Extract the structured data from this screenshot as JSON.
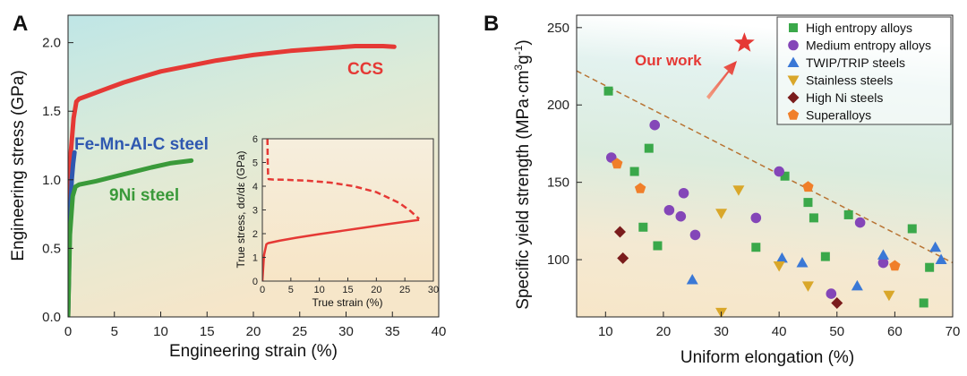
{
  "chart_data": [
    {
      "panel": "A",
      "type": "line",
      "xlabel": "Engineering strain (%)",
      "ylabel": "Engineering stress (GPa)",
      "xlim": [
        0,
        40
      ],
      "ylim": [
        0,
        2.2
      ],
      "xticks": [
        0,
        5,
        10,
        15,
        20,
        25,
        30,
        35,
        40
      ],
      "yticks": [
        0.0,
        0.5,
        1.0,
        1.5,
        2.0
      ],
      "series": [
        {
          "name": "CCS",
          "color": "#e53935",
          "x": [
            0,
            0.3,
            0.6,
            0.9,
            1.2,
            2,
            4,
            6,
            8,
            10,
            13,
            16,
            20,
            24,
            28,
            31,
            34,
            35.2
          ],
          "y": [
            0,
            1.2,
            1.45,
            1.57,
            1.59,
            1.61,
            1.66,
            1.71,
            1.75,
            1.79,
            1.83,
            1.87,
            1.91,
            1.94,
            1.96,
            1.975,
            1.975,
            1.97
          ]
        },
        {
          "name": "Fe-Mn-Al-C steel",
          "color": "#2f58b0",
          "x": [
            0,
            0.2,
            0.4,
            0.55,
            0.7
          ],
          "y": [
            0,
            0.7,
            1.0,
            1.12,
            1.2
          ]
        },
        {
          "name": "9Ni steel",
          "color": "#3a9a3a",
          "x": [
            0,
            0.2,
            0.5,
            0.8,
            1.2,
            3,
            6,
            9,
            11,
            13.3
          ],
          "y": [
            0,
            0.6,
            0.88,
            0.95,
            0.965,
            0.99,
            1.04,
            1.09,
            1.12,
            1.14
          ]
        }
      ],
      "inset": {
        "type": "line",
        "xlabel": "True strain (%)",
        "ylabel": "True stress, dσ/dε (GPa)",
        "xlim": [
          0,
          30
        ],
        "ylim": [
          0,
          6
        ],
        "xticks": [
          0,
          5,
          10,
          15,
          20,
          25,
          30
        ],
        "yticks": [
          0,
          1,
          2,
          3,
          4,
          5,
          6
        ],
        "series": [
          {
            "name": "True stress",
            "style": "solid",
            "color": "#e53935",
            "x": [
              0,
              0.3,
              0.7,
              1.0,
              3,
              6,
              10,
              14,
              18,
              22,
              25,
              27.5
            ],
            "y": [
              0,
              1.1,
              1.55,
              1.6,
              1.7,
              1.83,
              1.98,
              2.12,
              2.26,
              2.4,
              2.5,
              2.58
            ]
          },
          {
            "name": "dσ/dε",
            "style": "dashed",
            "color": "#e53935",
            "x": [
              0.9,
              0.95,
              1.0,
              1.1,
              2,
              4,
              8,
              12,
              16,
              20,
              24,
              26,
              27.5
            ],
            "y": [
              6.0,
              5.0,
              4.5,
              4.3,
              4.28,
              4.27,
              4.23,
              4.15,
              4.0,
              3.75,
              3.3,
              2.95,
              2.62
            ]
          }
        ]
      },
      "annotations": [
        {
          "text": "CCS",
          "color": "#e53935"
        },
        {
          "text": "Fe-Mn-Al-C steel",
          "color": "#2f58b0"
        },
        {
          "text": "9Ni steel",
          "color": "#3a9a3a"
        }
      ]
    },
    {
      "panel": "B",
      "type": "scatter",
      "xlabel": "Uniform elongation (%)",
      "ylabel_prefix": "Specific yield strength (MPa·cm",
      "ylabel_sup1": "3",
      "ylabel_mid": "g",
      "ylabel_sup2": "-1",
      "ylabel_suffix": ")",
      "xlim": [
        5,
        70
      ],
      "ylim": [
        63,
        258
      ],
      "xticks": [
        10,
        20,
        30,
        40,
        50,
        60,
        70
      ],
      "yticks": [
        100,
        150,
        200,
        250
      ],
      "trend_line": {
        "x": [
          5,
          70
        ],
        "y": [
          222,
          98
        ],
        "color": "#b87333",
        "style": "dashed"
      },
      "highlight": {
        "label": "Our work",
        "x": 34,
        "y": 240,
        "color": "#e53935",
        "marker": "star"
      },
      "series": [
        {
          "name": "High entropy alloys",
          "marker": "square",
          "color": "#3aa84a",
          "points": [
            [
              10.5,
              209
            ],
            [
              15,
              157
            ],
            [
              16.5,
              121
            ],
            [
              17.5,
              172
            ],
            [
              19,
              109
            ],
            [
              36,
              108
            ],
            [
              41,
              154
            ],
            [
              45,
              137
            ],
            [
              46,
              127
            ],
            [
              48,
              102
            ],
            [
              52,
              129
            ],
            [
              63,
              120
            ],
            [
              65,
              72
            ],
            [
              66,
              95
            ]
          ]
        },
        {
          "name": "Medium entropy alloys",
          "marker": "circle",
          "color": "#8446b8",
          "points": [
            [
              11,
              166
            ],
            [
              18.5,
              187
            ],
            [
              21,
              132
            ],
            [
              23,
              128
            ],
            [
              23.5,
              143
            ],
            [
              25.5,
              116
            ],
            [
              36,
              127
            ],
            [
              40,
              157
            ],
            [
              49,
              78
            ],
            [
              54,
              124
            ],
            [
              58,
              98
            ]
          ]
        },
        {
          "name": "TWIP/TRIP steels",
          "marker": "triangle-up",
          "color": "#3a78d6",
          "points": [
            [
              25,
              87
            ],
            [
              40.5,
              101
            ],
            [
              44,
              98
            ],
            [
              53.5,
              83
            ],
            [
              58,
              103
            ],
            [
              67,
              108
            ],
            [
              68,
              100
            ]
          ]
        },
        {
          "name": "Stainless steels",
          "marker": "triangle-down",
          "color": "#d9a72a",
          "points": [
            [
              30,
              130
            ],
            [
              30,
              66
            ],
            [
              33,
              145
            ],
            [
              40,
              96
            ],
            [
              45,
              83
            ],
            [
              59,
              77
            ]
          ]
        },
        {
          "name": "High Ni steels",
          "marker": "diamond",
          "color": "#7a1c1c",
          "points": [
            [
              12.5,
              118
            ],
            [
              13,
              101
            ],
            [
              50,
              72
            ]
          ]
        },
        {
          "name": "Superalloys",
          "marker": "pentagon",
          "color": "#f07f2a",
          "points": [
            [
              12,
              162
            ],
            [
              16,
              146
            ],
            [
              45,
              147
            ],
            [
              60,
              96
            ]
          ]
        }
      ]
    }
  ],
  "panel_a_label": "A",
  "panel_b_label": "B"
}
